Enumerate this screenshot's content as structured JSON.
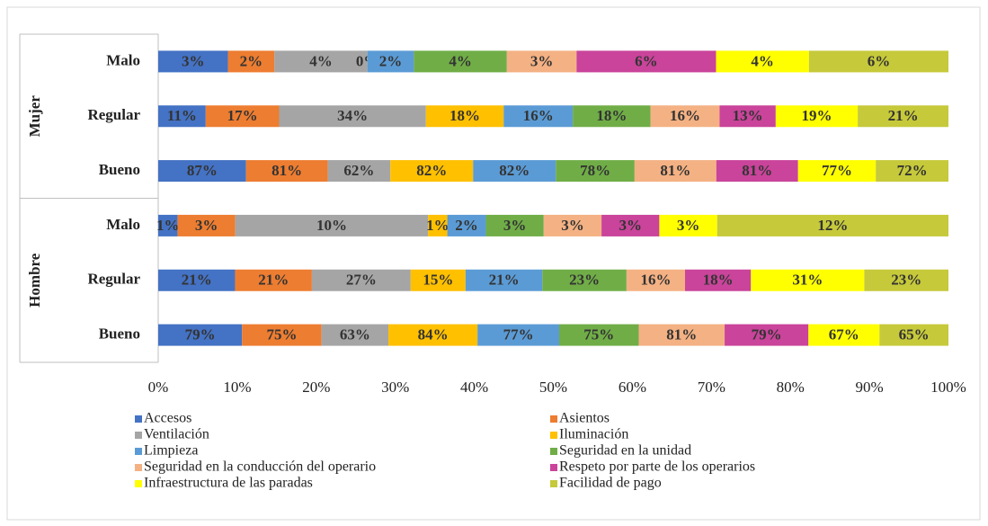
{
  "chart_data": {
    "type": "bar",
    "orientation": "horizontal",
    "stacked": "percent",
    "groups": [
      {
        "label": "Mujer",
        "categories": [
          "Malo",
          "Regular",
          "Bueno"
        ]
      },
      {
        "label": "Hombre",
        "categories": [
          "Malo",
          "Regular",
          "Bueno"
        ]
      }
    ],
    "series": [
      {
        "name": "Accesos",
        "color": "#4472c4",
        "values": [
          3,
          11,
          87,
          1,
          21,
          79
        ],
        "value_labels": [
          "3%",
          "11%",
          "87%",
          "1%",
          "21%",
          "79%"
        ]
      },
      {
        "name": "Asientos",
        "color": "#ed7d31",
        "values": [
          2,
          17,
          81,
          3,
          21,
          75
        ],
        "value_labels": [
          "2%",
          "17%",
          "81%",
          "3%",
          "21%",
          "75%"
        ]
      },
      {
        "name": "Ventilación",
        "color": "#a5a5a5",
        "values": [
          4,
          34,
          62,
          10,
          27,
          63
        ],
        "value_labels": [
          "4%",
          "34%",
          "62%",
          "10%",
          "27%",
          "63%"
        ]
      },
      {
        "name": "Iluminación",
        "color": "#ffc000",
        "values": [
          0,
          18,
          82,
          1,
          15,
          84
        ],
        "value_labels": [
          "0%",
          "18%",
          "82%",
          "1%",
          "15%",
          "84%"
        ]
      },
      {
        "name": "Limpieza",
        "color": "#5b9bd5",
        "values": [
          2,
          16,
          82,
          2,
          21,
          77
        ],
        "value_labels": [
          "2%",
          "16%",
          "82%",
          "2%",
          "21%",
          "77%"
        ]
      },
      {
        "name": "Seguridad en la unidad",
        "color": "#70ad47",
        "values": [
          4,
          18,
          78,
          3,
          23,
          75
        ],
        "value_labels": [
          "4%",
          "18%",
          "78%",
          "3%",
          "23%",
          "75%"
        ]
      },
      {
        "name": "Seguridad en la conducción del operario",
        "color": "#f4b183",
        "values": [
          3,
          16,
          81,
          3,
          16,
          81
        ],
        "value_labels": [
          "3%",
          "16%",
          "81%",
          "3%",
          "16%",
          "81%"
        ]
      },
      {
        "name": "Respeto por parte de los operarios",
        "color": "#c9449a",
        "values": [
          6,
          13,
          81,
          3,
          18,
          79
        ],
        "value_labels": [
          "6%",
          "13%",
          "81%",
          "3%",
          "18%",
          "79%"
        ]
      },
      {
        "name": "Infraestructura de las paradas",
        "color": "#ffff00",
        "values": [
          4,
          19,
          77,
          3,
          31,
          67
        ],
        "value_labels": [
          "4%",
          "19%",
          "77%",
          "3%",
          "31%",
          "67%"
        ]
      },
      {
        "name": "Facilidad de pago",
        "color": "#c6c93a",
        "values": [
          6,
          21,
          72,
          12,
          23,
          65
        ],
        "value_labels": [
          "6%",
          "21%",
          "72%",
          "12%",
          "23%",
          "65%"
        ]
      }
    ],
    "xlim": [
      0,
      100
    ],
    "xticks": [
      {
        "value": 0,
        "label": "0%"
      },
      {
        "value": 10,
        "label": "10%"
      },
      {
        "value": 20,
        "label": "20%"
      },
      {
        "value": 30,
        "label": "30%"
      },
      {
        "value": 40,
        "label": "40%"
      },
      {
        "value": 50,
        "label": "50%"
      },
      {
        "value": 60,
        "label": "60%"
      },
      {
        "value": 70,
        "label": "70%"
      },
      {
        "value": 80,
        "label": "80%"
      },
      {
        "value": 90,
        "label": "90%"
      },
      {
        "value": 100,
        "label": "100%"
      }
    ],
    "legend": "bottom"
  }
}
